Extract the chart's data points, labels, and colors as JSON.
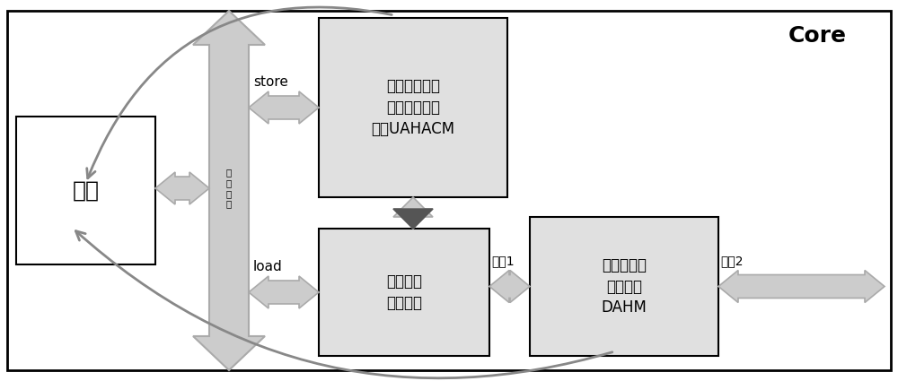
{
  "title": "Core",
  "neihe_text": "内核",
  "uahacm_text": "上游自适应硬\n件加速协处理\n模块UAHACM",
  "insert_text": "插空传输\n仲裁模块",
  "dahm_text": "直接访问高\n速存储体\nDAHM",
  "store_text": "store",
  "load_text": "load",
  "port1_text": "端口1",
  "port2_text": "端口2",
  "bus_text": "回写总线",
  "arrow_fill": "#cccccc",
  "arrow_edge": "#999999",
  "box_fill_gray": "#e0e0e0",
  "box_fill_white": "#ffffff",
  "box_edge": "#000000",
  "curve_color": "#888888",
  "dark_fill": "#666666"
}
